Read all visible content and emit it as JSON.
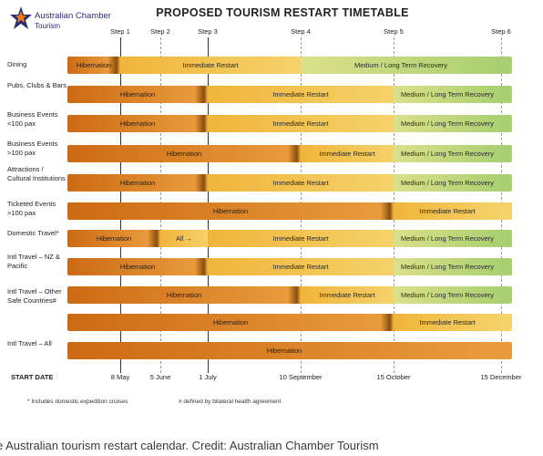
{
  "logo": {
    "line1": "Australian Chamber",
    "line2": "Tourism"
  },
  "title": "PROPOSED TOURISM RESTART TIMETABLE",
  "steps": [
    "Step 1",
    "Step 2",
    "Step 3",
    "Step 4",
    "Step 5",
    "Step 6"
  ],
  "start_date_label": "START DATE",
  "dates": [
    "8 May",
    "5 June",
    "1 July",
    "10 September",
    "15 October",
    "15 December"
  ],
  "colors": {
    "hibernation": "#d97a1e",
    "restart": "#f3c24a",
    "recovery": "#b6d67a",
    "transition": "#9a5a10"
  },
  "rows": [
    {
      "label": "Dining",
      "segments": [
        {
          "text": "Hibernation",
          "start": 0,
          "end": 1,
          "phase": "hibernation"
        },
        {
          "text": "Immediate Restart",
          "start": 1,
          "end": 4,
          "phase": "restart"
        },
        {
          "text": "Medium / Long Term Recovery",
          "start": 4,
          "end": 6,
          "phase": "recovery"
        }
      ]
    },
    {
      "label": "Pubs, Clubs & Bars",
      "segments": [
        {
          "text": "Hibernation",
          "start": 0,
          "end": 3,
          "phase": "hibernation"
        },
        {
          "text": "Immediate Restart",
          "start": 3,
          "end": 5,
          "phase": "restart"
        },
        {
          "text": "Medium / Long Term Recovery",
          "start": 5,
          "end": 6,
          "phase": "recovery"
        }
      ]
    },
    {
      "label": "Business Events <100 pax",
      "segments": [
        {
          "text": "Hibernation",
          "start": 0,
          "end": 3,
          "phase": "hibernation"
        },
        {
          "text": "Immediate Restart",
          "start": 3,
          "end": 5,
          "phase": "restart"
        },
        {
          "text": "Medium / Long Term Recovery",
          "start": 5,
          "end": 6,
          "phase": "recovery"
        }
      ]
    },
    {
      "label": "Business Events >100 pax",
      "segments": [
        {
          "text": "Hibernation",
          "start": 0,
          "end": 4,
          "phase": "hibernation"
        },
        {
          "text": "Immediate Restart",
          "start": 4,
          "end": 5,
          "phase": "restart"
        },
        {
          "text": "Medium / Long Term Recovery",
          "start": 5,
          "end": 6,
          "phase": "recovery"
        }
      ]
    },
    {
      "label": "Attractions / Cultural Institutions",
      "segments": [
        {
          "text": "Hibernation",
          "start": 0,
          "end": 3,
          "phase": "hibernation"
        },
        {
          "text": "Immediate Restart",
          "start": 3,
          "end": 5,
          "phase": "restart"
        },
        {
          "text": "Medium / Long Term Recovery",
          "start": 5,
          "end": 6,
          "phase": "recovery"
        }
      ]
    },
    {
      "label": "Ticketed Events >100 pax",
      "segments": [
        {
          "text": "Hibernation",
          "start": 0,
          "end": 5,
          "phase": "hibernation"
        },
        {
          "text": "Immediate Restart",
          "start": 5,
          "end": 6,
          "phase": "restart"
        }
      ]
    },
    {
      "label": "Domestic Travel*",
      "segments": [
        {
          "text": "Hibernation",
          "start": 0,
          "end": 2,
          "phase": "hibernation"
        },
        {
          "text": "All →",
          "start": 2,
          "end": 3,
          "phase": "restart"
        },
        {
          "text": "Immediate Restart",
          "start": 3,
          "end": 5,
          "phase": "restart"
        },
        {
          "text": "Medium / Long Term Recovery",
          "start": 5,
          "end": 6,
          "phase": "recovery"
        }
      ]
    },
    {
      "label": "Intl Travel – NZ & Pacific",
      "segments": [
        {
          "text": "Hibernation",
          "start": 0,
          "end": 3,
          "phase": "hibernation"
        },
        {
          "text": "Immediate Restart",
          "start": 3,
          "end": 5,
          "phase": "restart"
        },
        {
          "text": "Medium / Long Term Recovery",
          "start": 5,
          "end": 6,
          "phase": "recovery"
        }
      ]
    },
    {
      "label": "Intl Travel – Other Safe Countries#",
      "segments": [
        {
          "text": "Hibernation",
          "start": 0,
          "end": 4,
          "phase": "hibernation"
        },
        {
          "text": "Immediate Restart",
          "start": 4,
          "end": 5,
          "phase": "restart"
        },
        {
          "text": "Medium / Long Term Recovery",
          "start": 5,
          "end": 6,
          "phase": "recovery"
        }
      ]
    },
    {
      "label": "",
      "segments": [
        {
          "text": "Hibernation",
          "start": 0,
          "end": 5,
          "phase": "hibernation"
        },
        {
          "text": "Immediate Restart",
          "start": 5,
          "end": 6,
          "phase": "restart"
        }
      ]
    },
    {
      "label": "Intl Travel – All",
      "segments": [
        {
          "text": "Hibernation",
          "start": 0,
          "end": 6,
          "phase": "hibernation"
        }
      ]
    }
  ],
  "footnotes": [
    "* Includes domestic expedition cruises",
    "# defined by bilateral health agreement"
  ],
  "caption": "e Australian tourism restart calendar. Credit: Australian Chamber Tourism"
}
